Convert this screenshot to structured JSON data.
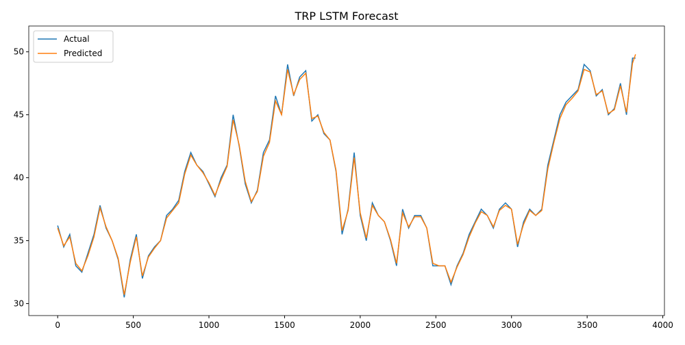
{
  "chart_data": {
    "type": "line",
    "title": "TRP LSTM Forecast",
    "x": [
      0,
      40,
      80,
      120,
      160,
      200,
      240,
      280,
      320,
      360,
      400,
      440,
      480,
      520,
      560,
      600,
      640,
      680,
      720,
      760,
      800,
      840,
      880,
      920,
      960,
      1000,
      1040,
      1080,
      1120,
      1160,
      1200,
      1240,
      1280,
      1320,
      1360,
      1400,
      1440,
      1480,
      1520,
      1560,
      1600,
      1640,
      1680,
      1720,
      1760,
      1800,
      1840,
      1880,
      1920,
      1960,
      2000,
      2040,
      2080,
      2120,
      2160,
      2200,
      2240,
      2280,
      2320,
      2360,
      2400,
      2440,
      2480,
      2520,
      2560,
      2600,
      2640,
      2680,
      2720,
      2760,
      2800,
      2840,
      2880,
      2920,
      2960,
      3000,
      3040,
      3080,
      3120,
      3160,
      3200,
      3240,
      3280,
      3320,
      3360,
      3400,
      3440,
      3480,
      3520,
      3560,
      3600,
      3640,
      3680,
      3720,
      3760,
      3800,
      3820
    ],
    "series": [
      {
        "name": "Actual",
        "color": "#1f77b4",
        "values": [
          36.2,
          34.5,
          35.5,
          33.0,
          32.5,
          34.0,
          35.5,
          37.8,
          36.0,
          35.0,
          33.5,
          30.5,
          33.5,
          35.5,
          32.0,
          33.8,
          34.5,
          35.0,
          37.0,
          37.5,
          38.2,
          40.5,
          42.0,
          41.0,
          40.5,
          39.5,
          38.5,
          40.0,
          41.0,
          45.0,
          42.5,
          39.5,
          38.0,
          39.0,
          42.0,
          43.0,
          46.5,
          45.0,
          49.0,
          46.5,
          48.0,
          48.5,
          44.5,
          45.0,
          43.5,
          43.0,
          40.5,
          35.5,
          37.5,
          42.0,
          37.0,
          35.0,
          38.0,
          37.0,
          36.5,
          35.0,
          33.0,
          37.5,
          36.0,
          37.0,
          37.0,
          36.0,
          33.0,
          33.0,
          33.0,
          31.5,
          33.0,
          34.0,
          35.5,
          36.5,
          37.5,
          37.0,
          36.0,
          37.5,
          38.0,
          37.5,
          34.5,
          36.5,
          37.5,
          37.0,
          37.5,
          41.0,
          43.0,
          45.0,
          46.0,
          46.5,
          47.0,
          49.0,
          48.5,
          46.5,
          47.0,
          45.0,
          45.5,
          47.5,
          45.0,
          49.5,
          49.5
        ]
      },
      {
        "name": "Predicted",
        "color": "#ff7f0e",
        "values": [
          36.0,
          34.6,
          35.3,
          33.2,
          32.6,
          33.8,
          35.3,
          37.6,
          36.1,
          35.0,
          33.6,
          30.7,
          33.3,
          35.3,
          32.2,
          33.7,
          34.4,
          35.0,
          36.8,
          37.4,
          38.0,
          40.3,
          41.8,
          41.0,
          40.4,
          39.6,
          38.6,
          39.8,
          40.9,
          44.6,
          42.6,
          39.7,
          38.1,
          38.9,
          41.7,
          42.8,
          46.1,
          45.0,
          48.6,
          46.6,
          47.8,
          48.3,
          44.7,
          44.9,
          43.6,
          43.0,
          40.6,
          35.8,
          37.4,
          41.6,
          37.2,
          35.2,
          37.8,
          37.0,
          36.5,
          35.1,
          33.2,
          37.2,
          36.1,
          36.9,
          36.9,
          36.0,
          33.2,
          33.0,
          33.0,
          31.7,
          32.9,
          33.9,
          35.3,
          36.4,
          37.3,
          37.0,
          36.1,
          37.4,
          37.8,
          37.5,
          34.7,
          36.3,
          37.4,
          37.0,
          37.4,
          40.7,
          42.8,
          44.7,
          45.8,
          46.3,
          46.9,
          48.6,
          48.4,
          46.6,
          46.9,
          45.1,
          45.4,
          47.3,
          45.2,
          49.1,
          49.8
        ]
      }
    ],
    "xlim": [
      -191,
      4011
    ],
    "ylim": [
      29.05,
      52.05
    ],
    "xticks": [
      0,
      500,
      1000,
      1500,
      2000,
      2500,
      3000,
      3500,
      4000
    ],
    "yticks": [
      30,
      35,
      40,
      45,
      50
    ],
    "legend": "upper left"
  }
}
